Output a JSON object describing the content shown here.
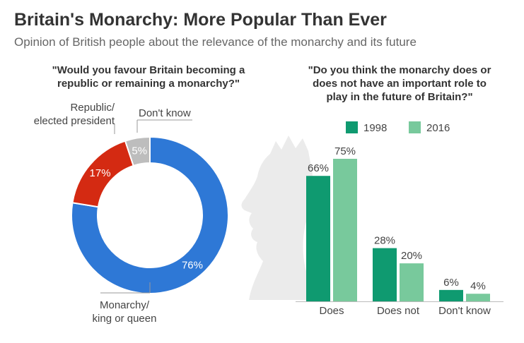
{
  "header": {
    "title": "Britain's Monarchy: More Popular Than Ever",
    "subtitle": "Opinion of British people about the relevance of the monarchy and its future"
  },
  "colors": {
    "monarchy": "#2e78d6",
    "republic": "#d42a12",
    "dont_know_pie": "#bdbdbd",
    "y1998": "#0f9a70",
    "y2016": "#78c99c",
    "silhouette": "#ebebeb"
  },
  "chart_data": [
    {
      "type": "pie",
      "title_lines": [
        "\"Would you favour Britain becoming a",
        "republic or remaining a monarchy?\""
      ],
      "slices": [
        {
          "key": "monarchy",
          "label_lines": [
            "Monarchy/",
            "king or queen"
          ],
          "value": 76,
          "display": "76%"
        },
        {
          "key": "republic",
          "label_lines": [
            "Republic/",
            "elected president"
          ],
          "value": 17,
          "display": "17%"
        },
        {
          "key": "dont_know",
          "label_lines": [
            "Don't know"
          ],
          "value": 5,
          "display": "5%"
        }
      ]
    },
    {
      "type": "bar",
      "title_lines": [
        "\"Do you think the monarchy does or",
        "does not have an important role to",
        "play in the future of Britain?\""
      ],
      "categories": [
        "Does",
        "Does not",
        "Don't know"
      ],
      "series": [
        {
          "name": "1998",
          "values": [
            66,
            28,
            6
          ],
          "labels": [
            "66%",
            "28%",
            "6%"
          ]
        },
        {
          "name": "2016",
          "values": [
            75,
            20,
            4
          ],
          "labels": [
            "75%",
            "20%",
            "4%"
          ]
        }
      ],
      "ylim": [
        0,
        75
      ]
    }
  ]
}
